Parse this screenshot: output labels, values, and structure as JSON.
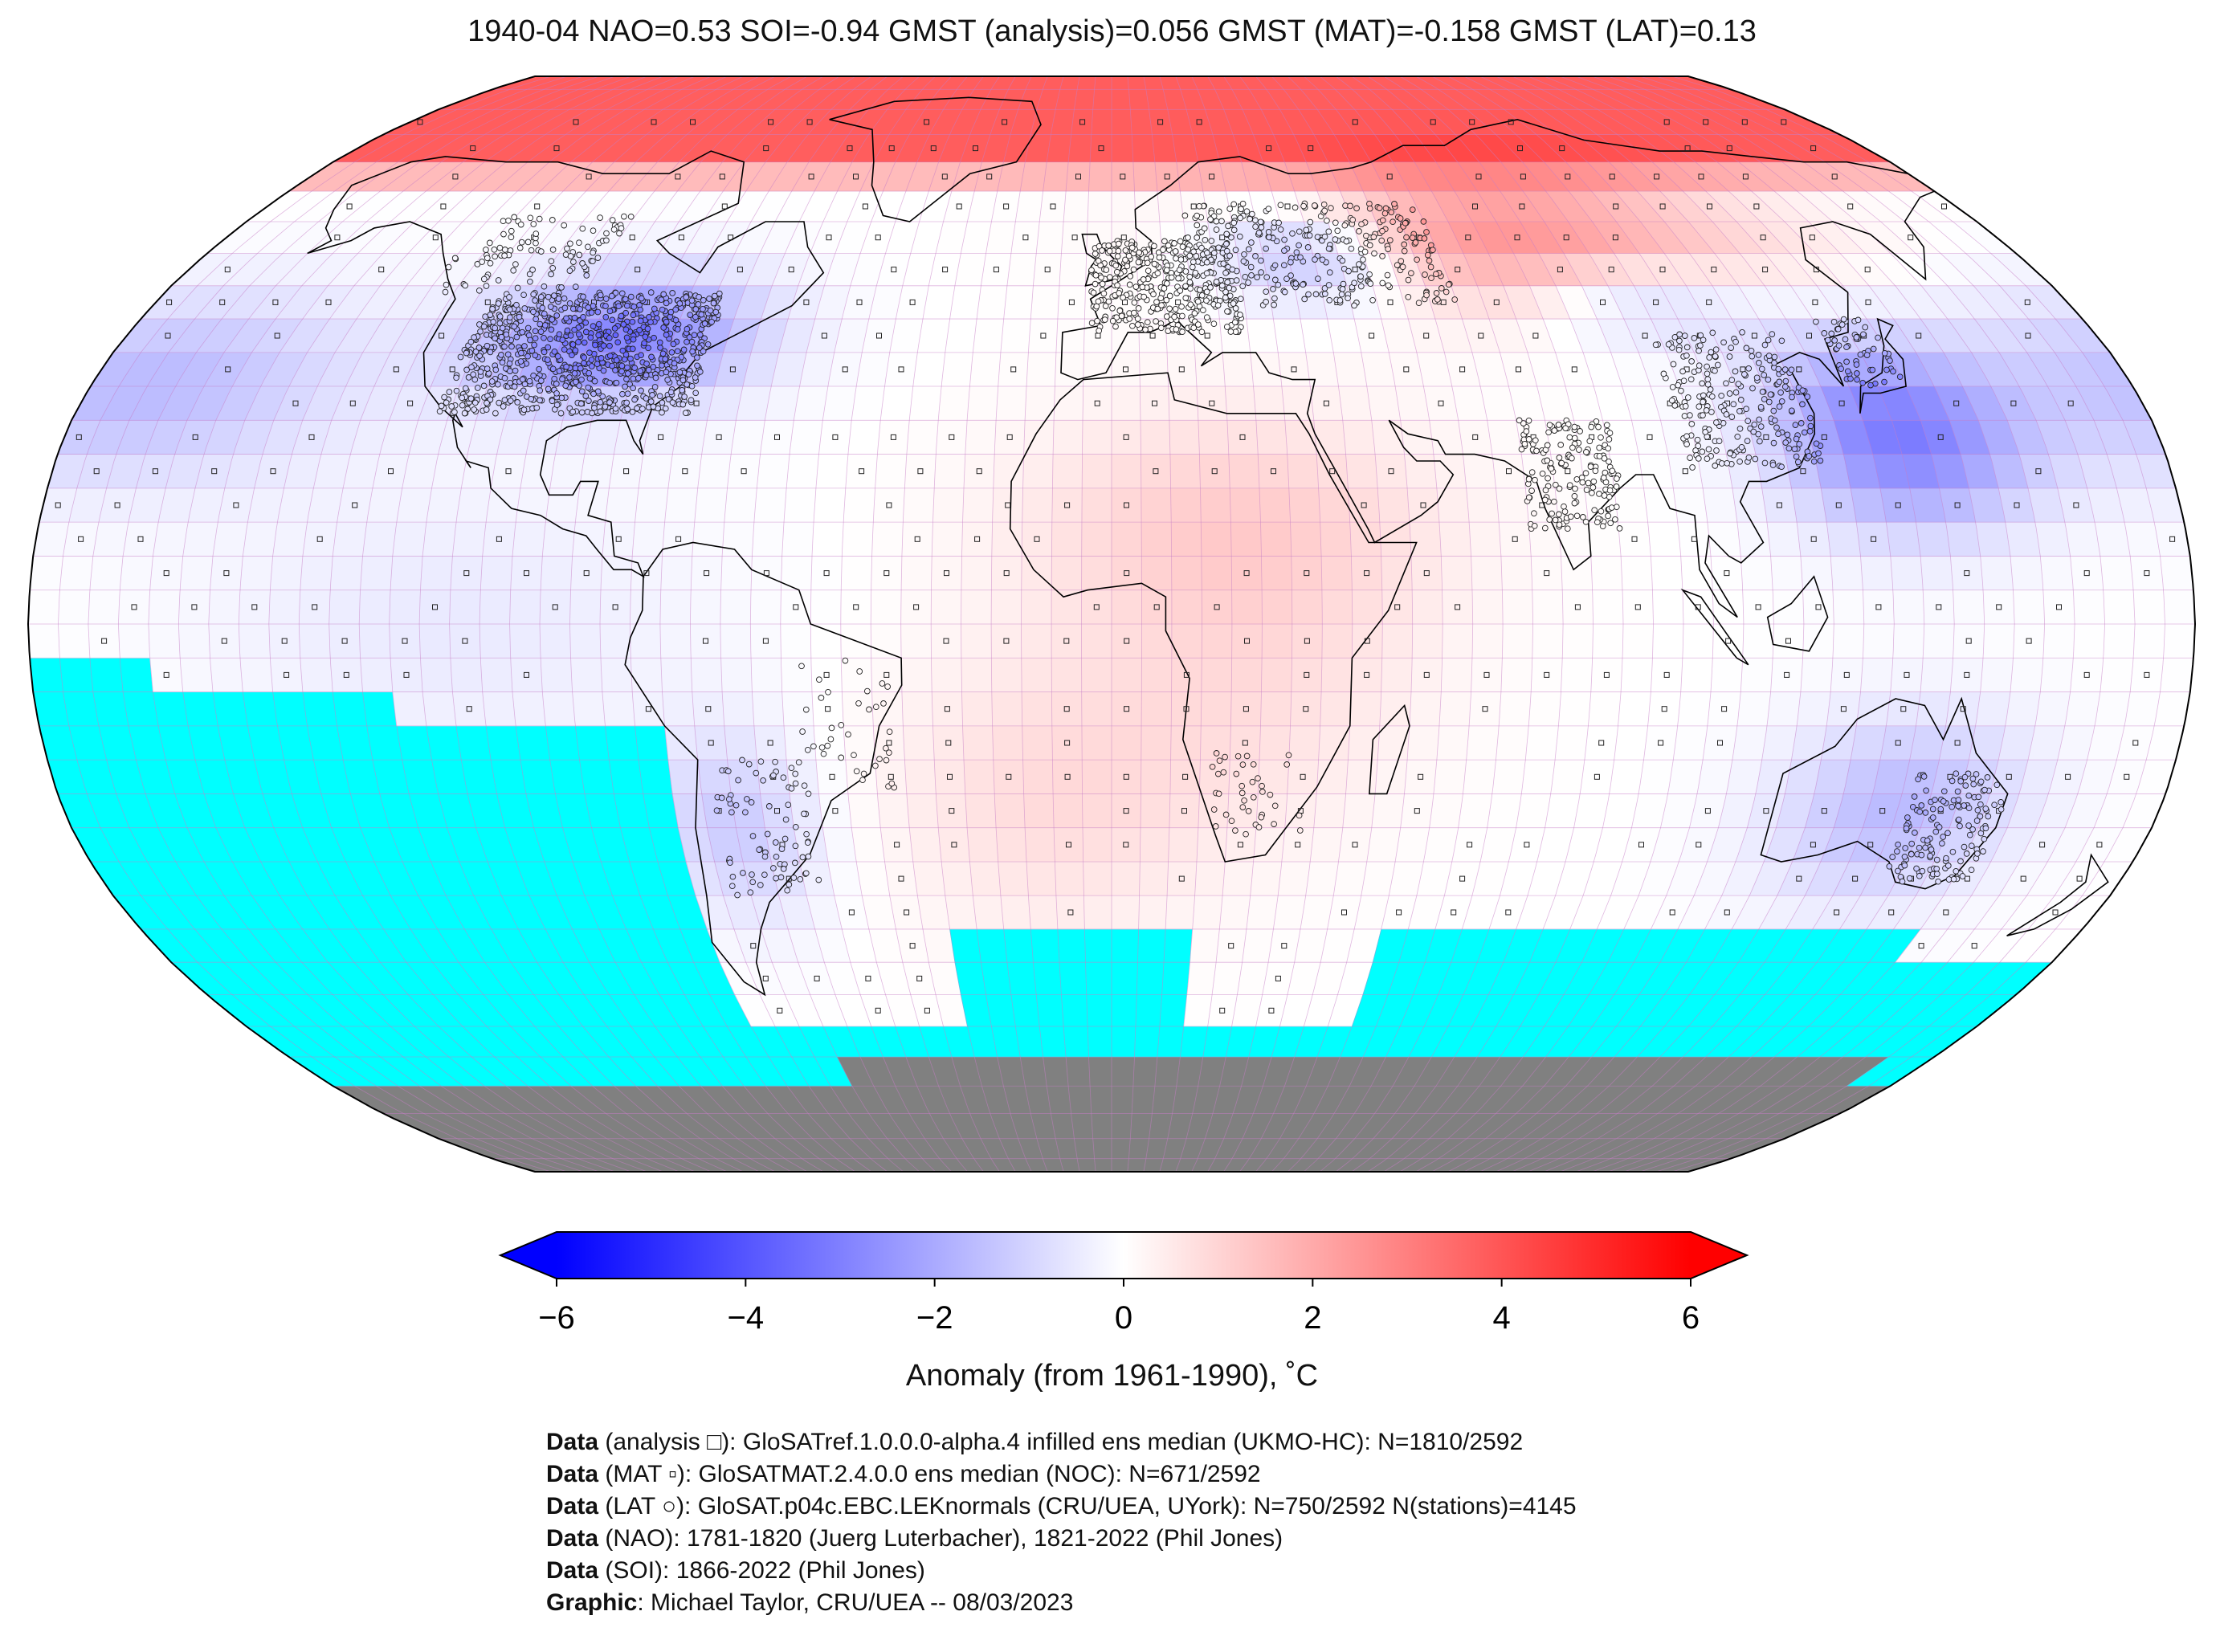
{
  "title": "1940-04 NAO=0.53 SOI=-0.94 GMST (analysis)=0.056 GMST (MAT)=-0.158 GMST (LAT)=0.13",
  "colorbar": {
    "ticks": [
      "−6",
      "−4",
      "−2",
      "0",
      "2",
      "4",
      "6"
    ],
    "tick_values": [
      -6,
      -4,
      -2,
      0,
      2,
      4,
      6
    ],
    "range": [
      -6,
      6
    ],
    "label": "Anomaly (from 1961-1990), ˚C",
    "colors": {
      "low": "#0000ff",
      "mid": "#ffffff",
      "high": "#ff0000"
    }
  },
  "map": {
    "projection": "robinson",
    "colors": {
      "missing_ocean": "#00ffff",
      "antarctica": "#808080",
      "grid": "#c77dc7",
      "coast": "#000000"
    }
  },
  "credits": [
    {
      "bold": "Data",
      "text": " (analysis □): GloSATref.1.0.0.0-alpha.4 infilled ens median (UKMO-HC): N=1810/2592"
    },
    {
      "bold": "Data",
      "text": " (MAT ▫): GloSATMAT.2.4.0.0 ens median (NOC): N=671/2592"
    },
    {
      "bold": "Data",
      "text": " (LAT ○): GloSAT.p04c.EBC.LEKnormals (CRU/UEA, UYork): N=750/2592 N(stations)=4145"
    },
    {
      "bold": "Data",
      "text": " (NAO): 1781-1820 (Juerg Luterbacher), 1821-2022 (Phil Jones)"
    },
    {
      "bold": "Data",
      "text": " (SOI): 1866-2022 (Phil Jones)"
    },
    {
      "bold": "Graphic",
      "text": ": Michael Taylor, CRU/UEA -- 08/03/2023"
    }
  ]
}
